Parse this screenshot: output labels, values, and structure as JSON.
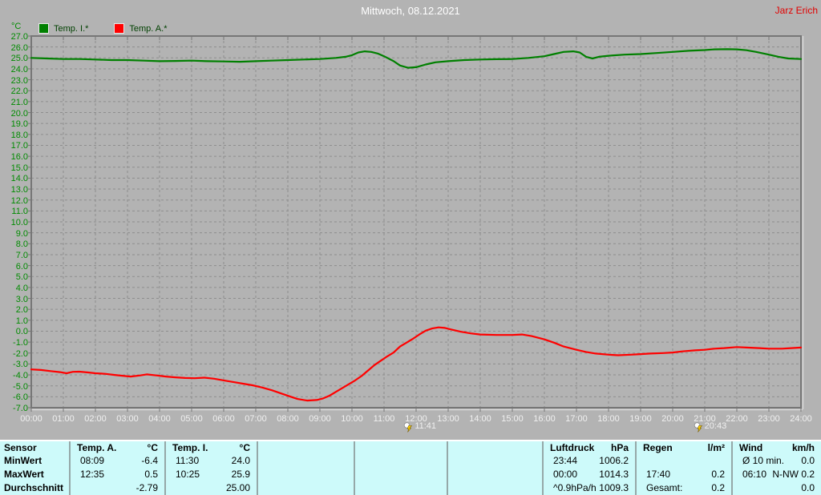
{
  "header": {
    "title": "Mittwoch, 08.12.2021",
    "user": "Jarz Erich"
  },
  "legend": {
    "unit": "°C"
  },
  "chart_data": {
    "type": "line",
    "title": "Mittwoch, 08.12.2021",
    "xlabel": "",
    "ylabel": "°C",
    "ylim": [
      -7.0,
      27.0
    ],
    "ytick_step": 1.0,
    "grid": "dashed",
    "legend_position": "top-left",
    "ytick_labels": [
      "27.0",
      "26.0",
      "25.0",
      "24.0",
      "23.0",
      "22.0",
      "21.0",
      "20.0",
      "19.0",
      "18.0",
      "17.0",
      "16.0",
      "15.0",
      "14.0",
      "13.0",
      "12.0",
      "11.0",
      "10.0",
      "9.0",
      "8.0",
      "7.0",
      "6.0",
      "5.0",
      "4.0",
      "3.0",
      "2.0",
      "1.0",
      "0.0",
      "-1.0",
      "-2.0",
      "-3.0",
      "-4.0",
      "-5.0",
      "-6.0",
      "-7.0"
    ],
    "xtick_labels": [
      "00:00",
      "01:00",
      "02:00",
      "03:00",
      "04:00",
      "05:00",
      "06:00",
      "07:00",
      "08:00",
      "09:00",
      "10:00",
      "11:00",
      "12:00",
      "13:00",
      "14:00",
      "15:00",
      "16:00",
      "17:00",
      "18:00",
      "19:00",
      "20:00",
      "21:00",
      "22:00",
      "23:00",
      "24:00"
    ],
    "series": [
      {
        "name": "Temp. I.*",
        "color": "#008000",
        "points": [
          [
            0,
            25.0
          ],
          [
            0.5,
            24.95
          ],
          [
            1,
            24.9
          ],
          [
            1.5,
            24.9
          ],
          [
            2,
            24.85
          ],
          [
            2.5,
            24.8
          ],
          [
            3,
            24.8
          ],
          [
            3.5,
            24.75
          ],
          [
            4,
            24.7
          ],
          [
            4.5,
            24.72
          ],
          [
            5,
            24.75
          ],
          [
            5.5,
            24.7
          ],
          [
            6,
            24.68
          ],
          [
            6.5,
            24.65
          ],
          [
            7,
            24.7
          ],
          [
            7.5,
            24.75
          ],
          [
            8,
            24.8
          ],
          [
            8.5,
            24.85
          ],
          [
            9,
            24.9
          ],
          [
            9.5,
            25.0
          ],
          [
            9.8,
            25.1
          ],
          [
            10,
            25.25
          ],
          [
            10.2,
            25.5
          ],
          [
            10.4,
            25.6
          ],
          [
            10.6,
            25.55
          ],
          [
            10.8,
            25.4
          ],
          [
            11,
            25.15
          ],
          [
            11.3,
            24.7
          ],
          [
            11.5,
            24.3
          ],
          [
            11.75,
            24.1
          ],
          [
            12,
            24.15
          ],
          [
            12.3,
            24.4
          ],
          [
            12.6,
            24.6
          ],
          [
            13,
            24.7
          ],
          [
            13.5,
            24.8
          ],
          [
            14,
            24.85
          ],
          [
            14.5,
            24.88
          ],
          [
            15,
            24.9
          ],
          [
            15.5,
            25.0
          ],
          [
            16,
            25.15
          ],
          [
            16.3,
            25.35
          ],
          [
            16.6,
            25.55
          ],
          [
            16.9,
            25.6
          ],
          [
            17.1,
            25.5
          ],
          [
            17.3,
            25.1
          ],
          [
            17.5,
            24.95
          ],
          [
            17.7,
            25.1
          ],
          [
            18,
            25.2
          ],
          [
            18.5,
            25.3
          ],
          [
            19,
            25.35
          ],
          [
            19.5,
            25.45
          ],
          [
            20,
            25.55
          ],
          [
            20.5,
            25.65
          ],
          [
            21,
            25.72
          ],
          [
            21.3,
            25.78
          ],
          [
            21.7,
            25.8
          ],
          [
            22,
            25.78
          ],
          [
            22.3,
            25.7
          ],
          [
            22.6,
            25.55
          ],
          [
            23,
            25.3
          ],
          [
            23.3,
            25.1
          ],
          [
            23.6,
            24.95
          ],
          [
            24,
            24.9
          ]
        ]
      },
      {
        "name": "Temp. A.*",
        "color": "#ff0000",
        "points": [
          [
            0,
            -3.5
          ],
          [
            0.3,
            -3.55
          ],
          [
            0.6,
            -3.65
          ],
          [
            0.9,
            -3.75
          ],
          [
            1.1,
            -3.85
          ],
          [
            1.3,
            -3.72
          ],
          [
            1.5,
            -3.7
          ],
          [
            1.8,
            -3.78
          ],
          [
            2,
            -3.85
          ],
          [
            2.3,
            -3.9
          ],
          [
            2.6,
            -4.0
          ],
          [
            2.9,
            -4.1
          ],
          [
            3.1,
            -4.15
          ],
          [
            3.4,
            -4.05
          ],
          [
            3.6,
            -3.95
          ],
          [
            3.9,
            -4.05
          ],
          [
            4.2,
            -4.15
          ],
          [
            4.5,
            -4.22
          ],
          [
            4.8,
            -4.28
          ],
          [
            5.1,
            -4.3
          ],
          [
            5.4,
            -4.25
          ],
          [
            5.7,
            -4.35
          ],
          [
            6,
            -4.5
          ],
          [
            6.3,
            -4.65
          ],
          [
            6.6,
            -4.8
          ],
          [
            6.9,
            -4.95
          ],
          [
            7.2,
            -5.15
          ],
          [
            7.5,
            -5.4
          ],
          [
            7.8,
            -5.7
          ],
          [
            8.1,
            -6.0
          ],
          [
            8.3,
            -6.2
          ],
          [
            8.6,
            -6.35
          ],
          [
            8.9,
            -6.3
          ],
          [
            9.1,
            -6.15
          ],
          [
            9.3,
            -5.9
          ],
          [
            9.5,
            -5.55
          ],
          [
            9.7,
            -5.2
          ],
          [
            9.9,
            -4.85
          ],
          [
            10.1,
            -4.5
          ],
          [
            10.3,
            -4.1
          ],
          [
            10.5,
            -3.6
          ],
          [
            10.7,
            -3.1
          ],
          [
            10.9,
            -2.7
          ],
          [
            11.1,
            -2.3
          ],
          [
            11.3,
            -1.95
          ],
          [
            11.5,
            -1.4
          ],
          [
            11.7,
            -1.05
          ],
          [
            11.9,
            -0.7
          ],
          [
            12.1,
            -0.3
          ],
          [
            12.3,
            0.05
          ],
          [
            12.5,
            0.25
          ],
          [
            12.7,
            0.35
          ],
          [
            12.9,
            0.3
          ],
          [
            13.1,
            0.15
          ],
          [
            13.4,
            -0.05
          ],
          [
            13.7,
            -0.2
          ],
          [
            14,
            -0.3
          ],
          [
            14.5,
            -0.35
          ],
          [
            15,
            -0.35
          ],
          [
            15.3,
            -0.3
          ],
          [
            15.6,
            -0.45
          ],
          [
            16,
            -0.75
          ],
          [
            16.3,
            -1.05
          ],
          [
            16.6,
            -1.4
          ],
          [
            17,
            -1.7
          ],
          [
            17.3,
            -1.9
          ],
          [
            17.6,
            -2.05
          ],
          [
            18,
            -2.15
          ],
          [
            18.3,
            -2.2
          ],
          [
            18.7,
            -2.15
          ],
          [
            19,
            -2.1
          ],
          [
            19.3,
            -2.05
          ],
          [
            19.7,
            -2.0
          ],
          [
            20,
            -1.95
          ],
          [
            20.3,
            -1.85
          ],
          [
            20.7,
            -1.75
          ],
          [
            21,
            -1.7
          ],
          [
            21.3,
            -1.6
          ],
          [
            21.6,
            -1.55
          ],
          [
            22,
            -1.45
          ],
          [
            22.3,
            -1.5
          ],
          [
            22.7,
            -1.55
          ],
          [
            23,
            -1.6
          ],
          [
            23.4,
            -1.6
          ],
          [
            23.7,
            -1.55
          ],
          [
            24,
            -1.5
          ]
        ]
      }
    ],
    "event_markers": [
      {
        "time": "11:41",
        "hours": 11.683,
        "icon": "weather-event-icon"
      },
      {
        "time": "20:43",
        "hours": 20.717,
        "icon": "weather-event-icon"
      }
    ]
  },
  "stats_table": {
    "columns": [
      {
        "type": "labels",
        "rows": [
          "Sensor",
          "MinWert",
          "MaxWert",
          "Durchschnitt"
        ]
      },
      {
        "type": "data",
        "name": "Temp. A.",
        "unit": "°C",
        "rows": [
          [
            "08:09",
            "-6.4"
          ],
          [
            "12:35",
            "0.5"
          ],
          [
            "",
            "-2.79"
          ]
        ]
      },
      {
        "type": "data",
        "name": "Temp. I.",
        "unit": "°C",
        "rows": [
          [
            "11:30",
            "24.0"
          ],
          [
            "10:25",
            "25.9"
          ],
          [
            "",
            "25.00"
          ]
        ]
      },
      {
        "type": "empty"
      },
      {
        "type": "empty"
      },
      {
        "type": "empty"
      },
      {
        "type": "data",
        "name": "Luftdruck",
        "unit": "hPa",
        "rows": [
          [
            "23:44",
            "1006.2"
          ],
          [
            "00:00",
            "1014.3"
          ],
          [
            "^0.9hPa/h",
            "1009.3"
          ]
        ]
      },
      {
        "type": "data",
        "name": "Regen",
        "unit": "l/m²",
        "rows": [
          [
            "",
            ""
          ],
          [
            "17:40",
            "0.2"
          ],
          [
            "Gesamt:",
            "0.2"
          ]
        ]
      },
      {
        "type": "data",
        "name": "Wind",
        "unit": "km/h",
        "rows": [
          [
            "Ø 10 min.",
            "0.0"
          ],
          [
            "06:10",
            "N-NW 0.2"
          ],
          [
            "",
            "0.0"
          ]
        ]
      }
    ]
  },
  "colors": {
    "background": "#b3b3b3",
    "plot_frame": "#767676",
    "grid": "#8e8e8e",
    "y_tick_text": "#008b00",
    "x_tick_text": "#f0f0f0",
    "title_text": "#ffffff",
    "owner_text": "#e20000",
    "legend_text": "#004000",
    "table_background": "#cdfafa",
    "series_temp_i": "#008000",
    "series_temp_a": "#ff0000"
  }
}
